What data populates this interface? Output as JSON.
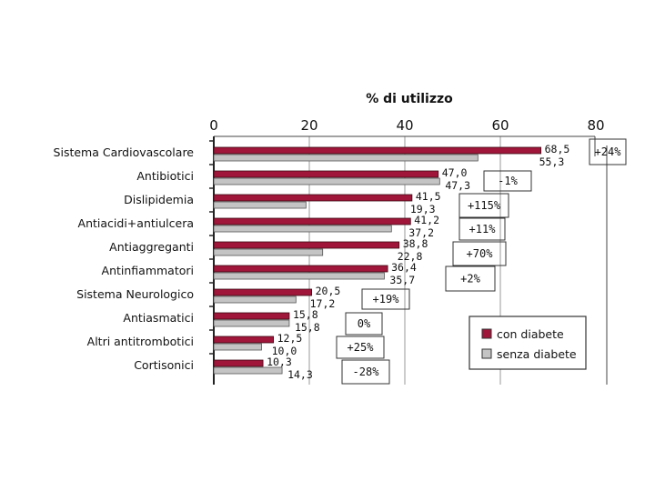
{
  "chart_data": {
    "type": "bar",
    "orientation": "horizontal",
    "title": "% di utilizzo",
    "xlim": [
      0,
      80
    ],
    "xticks": [
      "0",
      "20",
      "40",
      "60",
      "80"
    ],
    "grid": true,
    "legend_position": "bottom-right",
    "categories": [
      "Sistema Cardiovascolare",
      "Antibiotici",
      "Dislipidemia",
      "Antiacidi+antiulcera",
      "Antiaggreganti",
      "Antinfiammatori",
      "Sistema Neurologico",
      "Antiasmatici",
      "Altri antitrombotici",
      "Cortisonici"
    ],
    "series": [
      {
        "name": "con diabete",
        "color": "#a0163a",
        "values": [
          68.5,
          47.0,
          41.5,
          41.2,
          38.8,
          36.4,
          20.5,
          15.8,
          12.5,
          10.3
        ],
        "labels": [
          "68,5",
          "47,0",
          "41,5",
          "41,2",
          "38,8",
          "36,4",
          "20,5",
          "15,8",
          "12,5",
          "10,3"
        ]
      },
      {
        "name": "senza diabete",
        "color": "#c4c4c4",
        "values": [
          55.3,
          47.3,
          19.3,
          37.2,
          22.8,
          35.7,
          17.2,
          15.8,
          10.0,
          14.3
        ],
        "labels": [
          "55,3",
          "47,3",
          "19,3",
          "37,2",
          "22,8",
          "35,7",
          "17,2",
          "15,8",
          "10,0",
          "14,3"
        ]
      }
    ],
    "differences": [
      "+24%",
      "-1%",
      "+115%",
      "+11%",
      "+70%",
      "+2%",
      "+19%",
      "0%",
      "+25%",
      "-28%"
    ]
  }
}
